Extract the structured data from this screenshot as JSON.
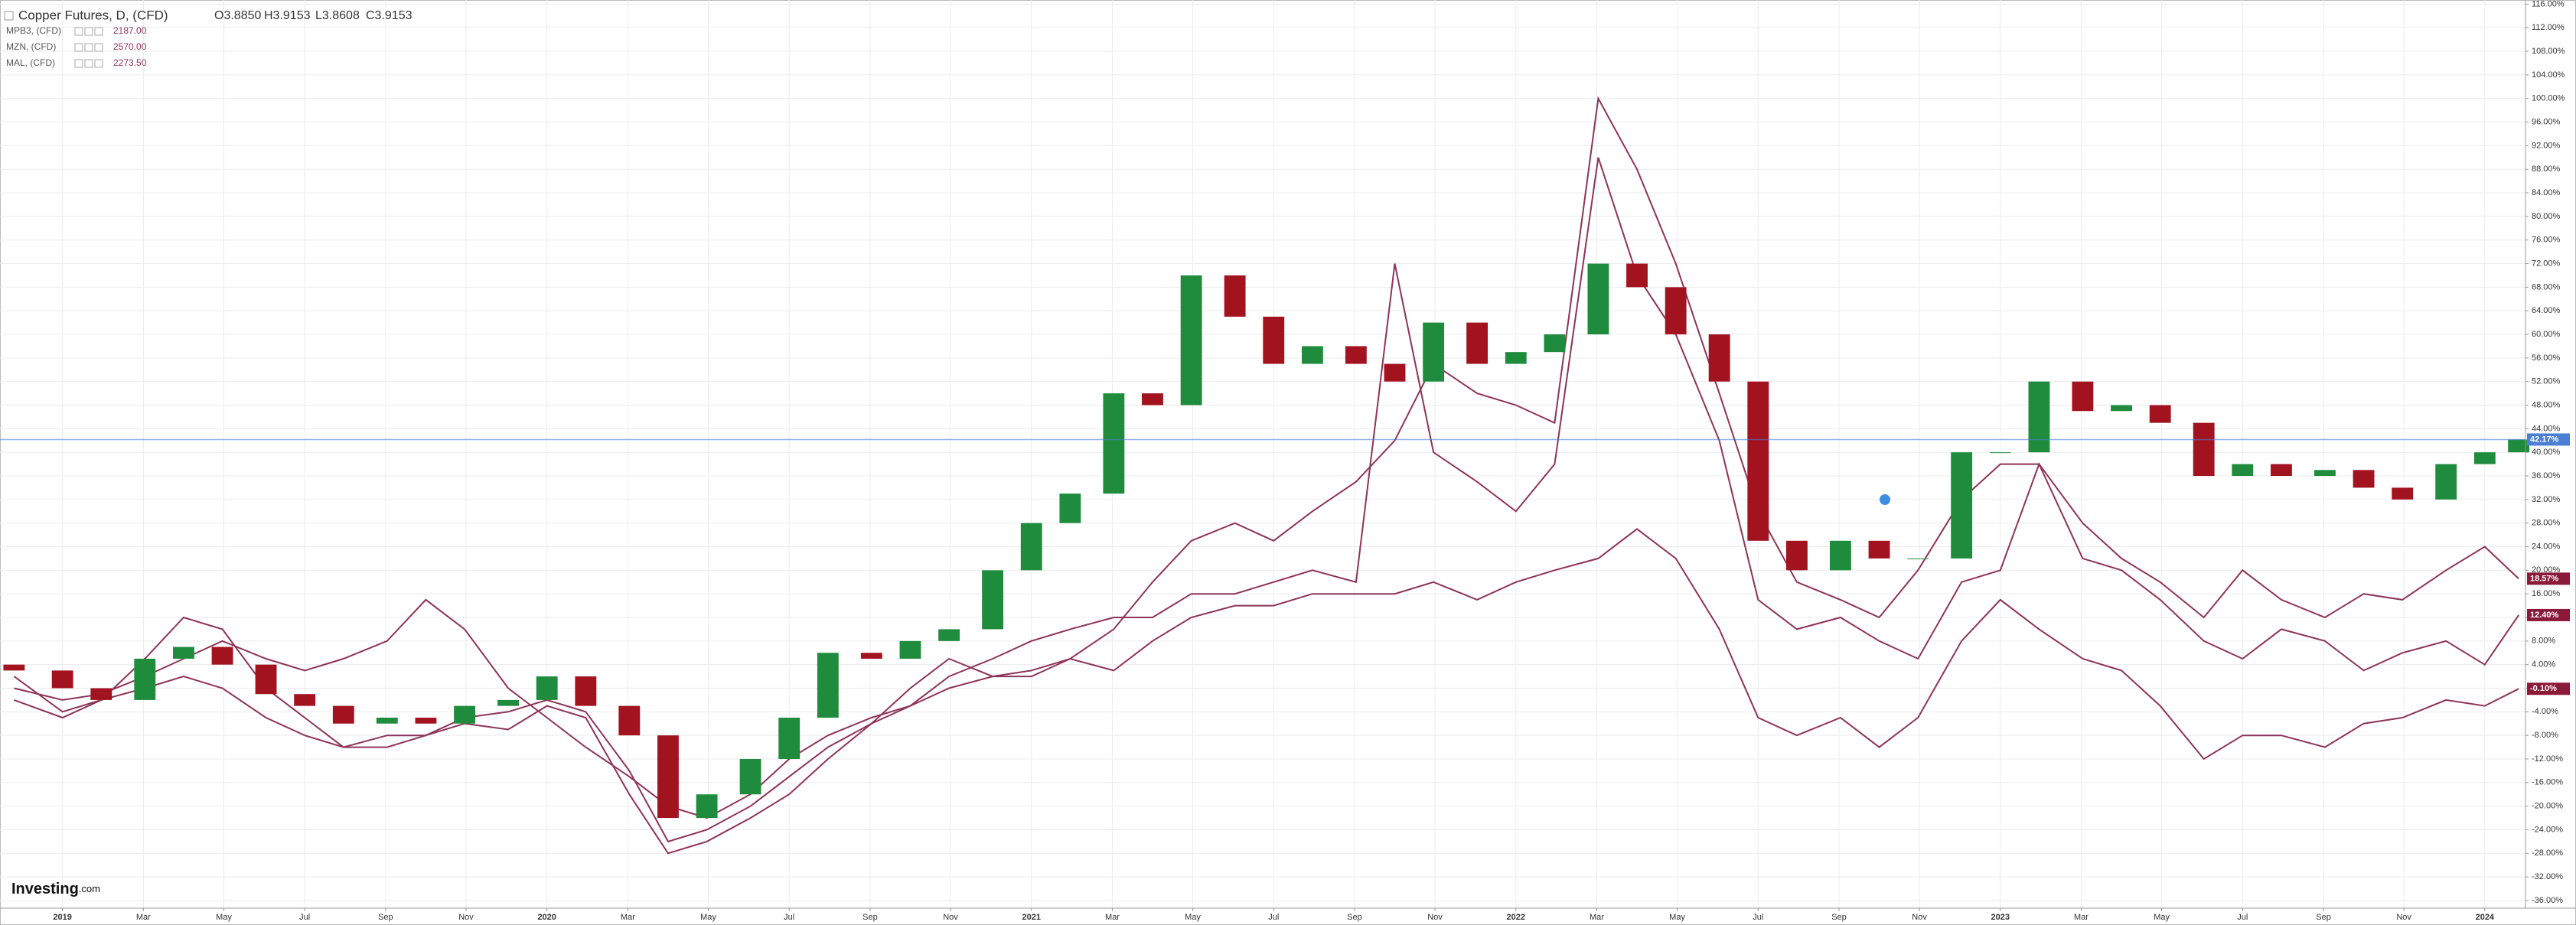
{
  "chart_data": {
    "type": "candlestick",
    "title": "Copper Futures, D, (CFD)",
    "ohlc": [
      "O3.8850",
      "H3.9153",
      "L3.8608",
      "C3.9153"
    ],
    "up_color": "#1e8c3c",
    "down_color": "#a3121f",
    "last_label": "42.17%",
    "last_color": "#4a7fd4",
    "grid": true,
    "x": [
      2018.9,
      2019,
      2019.08,
      2019.17,
      2019.25,
      2019.33,
      2019.42,
      2019.5,
      2019.58,
      2019.67,
      2019.75,
      2019.83,
      2019.92,
      2020,
      2020.08,
      2020.17,
      2020.25,
      2020.33,
      2020.42,
      2020.5,
      2020.58,
      2020.67,
      2020.75,
      2020.83,
      2020.92,
      2021,
      2021.08,
      2021.17,
      2021.25,
      2021.33,
      2021.42,
      2021.5,
      2021.58,
      2021.67,
      2021.75,
      2021.83,
      2021.92,
      2022,
      2022.08,
      2022.17,
      2022.25,
      2022.33,
      2022.42,
      2022.5,
      2022.58,
      2022.67,
      2022.75,
      2022.83,
      2022.92,
      2023,
      2023.08,
      2023.17,
      2023.25,
      2023.33,
      2023.42,
      2023.5,
      2023.58,
      2023.67,
      2023.75,
      2023.83,
      2023.92,
      2024,
      2024.07
    ],
    "open": [
      4,
      3,
      0,
      -2,
      5,
      7,
      4,
      -1,
      -3,
      -6,
      -5,
      -6,
      -3,
      -2,
      2,
      -3,
      -8,
      -22,
      -18,
      -12,
      -5,
      6,
      5,
      8,
      10,
      20,
      28,
      33,
      50,
      48,
      70,
      63,
      55,
      58,
      55,
      52,
      62,
      55,
      57,
      60,
      72,
      68,
      60,
      52,
      25,
      20,
      25,
      22,
      22,
      40,
      40,
      52,
      47,
      48,
      45,
      36,
      38,
      36,
      37,
      34,
      32,
      38,
      40
    ],
    "close": [
      3,
      0,
      -2,
      5,
      7,
      4,
      -1,
      -3,
      -6,
      -5,
      -6,
      -3,
      -2,
      2,
      -3,
      -8,
      -22,
      -18,
      -12,
      -5,
      6,
      5,
      8,
      10,
      20,
      28,
      33,
      50,
      48,
      70,
      63,
      55,
      58,
      55,
      52,
      62,
      55,
      57,
      60,
      72,
      68,
      60,
      52,
      25,
      20,
      25,
      22,
      22,
      40,
      40,
      52,
      47,
      48,
      45,
      36,
      38,
      36,
      37,
      34,
      32,
      38,
      40,
      42.17
    ],
    "series": [
      {
        "name": "MPB3, (CFD)",
        "value_text": "2187.00",
        "color": "#8e3358",
        "last_label": "18.57%",
        "values": [
          2,
          -4,
          -2,
          0,
          2,
          0,
          -5,
          -8,
          -10,
          -8,
          -8,
          -5,
          -4,
          -2,
          -4,
          -14,
          -26,
          -24,
          -20,
          -15,
          -10,
          -6,
          0,
          5,
          2,
          3,
          5,
          10,
          18,
          25,
          28,
          25,
          30,
          35,
          42,
          55,
          50,
          48,
          45,
          100,
          88,
          72,
          50,
          30,
          18,
          15,
          12,
          20,
          32,
          38,
          38,
          28,
          22,
          18,
          12,
          20,
          15,
          12,
          16,
          15,
          20,
          24,
          18.57
        ]
      },
      {
        "name": "MZN, (CFD)",
        "value_text": "2570.00",
        "color": "#8e3358",
        "last_label": "12.40%",
        "values": [
          -2,
          -5,
          -2,
          5,
          12,
          10,
          0,
          -5,
          -10,
          -10,
          -8,
          -6,
          -7,
          -3,
          -5,
          -18,
          -28,
          -26,
          -22,
          -18,
          -12,
          -6,
          -3,
          2,
          5,
          8,
          10,
          12,
          12,
          16,
          16,
          18,
          20,
          18,
          72,
          40,
          35,
          30,
          38,
          90,
          70,
          60,
          42,
          15,
          10,
          12,
          8,
          5,
          18,
          20,
          38,
          22,
          20,
          15,
          8,
          5,
          10,
          8,
          3,
          6,
          8,
          4,
          12.4
        ]
      },
      {
        "name": "MAL, (CFD)",
        "value_text": "2273.50",
        "color": "#8e3358",
        "last_label": "-0.10%",
        "values": [
          0,
          -2,
          -1,
          2,
          5,
          8,
          5,
          3,
          5,
          8,
          15,
          10,
          0,
          -5,
          -10,
          -15,
          -20,
          -22,
          -18,
          -12,
          -8,
          -5,
          -3,
          0,
          2,
          2,
          5,
          3,
          8,
          12,
          14,
          14,
          16,
          16,
          16,
          18,
          15,
          18,
          20,
          22,
          27,
          22,
          10,
          -5,
          -8,
          -5,
          -10,
          -5,
          8,
          15,
          10,
          5,
          3,
          -3,
          -12,
          -8,
          -8,
          -10,
          -6,
          -5,
          -2,
          -3,
          -0.1
        ]
      }
    ],
    "xlim": [
      2018.871,
      2024.084
    ],
    "xticks": [
      2019,
      {
        "value": 2019.167,
        "label": "Mar"
      },
      {
        "value": 2019.333,
        "label": "May"
      },
      {
        "value": 2019.5,
        "label": "Jul"
      },
      {
        "value": 2019.667,
        "label": "Sep"
      },
      {
        "value": 2019.833,
        "label": "Nov"
      },
      2020,
      {
        "value": 2020.167,
        "label": "Mar"
      },
      {
        "value": 2020.333,
        "label": "May"
      },
      {
        "value": 2020.5,
        "label": "Jul"
      },
      {
        "value": 2020.667,
        "label": "Sep"
      },
      {
        "value": 2020.833,
        "label": "Nov"
      },
      2021,
      {
        "value": 2021.167,
        "label": "Mar"
      },
      {
        "value": 2021.333,
        "label": "May"
      },
      {
        "value": 2021.5,
        "label": "Jul"
      },
      {
        "value": 2021.667,
        "label": "Sep"
      },
      {
        "value": 2021.833,
        "label": "Nov"
      },
      2022,
      {
        "value": 2022.167,
        "label": "Mar"
      },
      {
        "value": 2022.333,
        "label": "May"
      },
      {
        "value": 2022.5,
        "label": "Jul"
      },
      {
        "value": 2022.667,
        "label": "Sep"
      },
      {
        "value": 2022.833,
        "label": "Nov"
      },
      2023,
      {
        "value": 2023.167,
        "label": "Mar"
      },
      {
        "value": 2023.333,
        "label": "May"
      },
      {
        "value": 2023.5,
        "label": "Jul"
      },
      {
        "value": 2023.667,
        "label": "Sep"
      },
      {
        "value": 2023.833,
        "label": "Nov"
      },
      2024
    ],
    "ylim": [
      -37.3,
      116.7
    ],
    "yticks": [
      {
        "value": 116,
        "label": "116.00%"
      },
      {
        "value": 112,
        "label": "112.00%"
      },
      {
        "value": 108,
        "label": "108.00%"
      },
      {
        "value": 104,
        "label": "104.00%"
      },
      {
        "value": 100,
        "label": "100.00%"
      },
      {
        "value": 96,
        "label": "96.00%"
      },
      {
        "value": 92,
        "label": "92.00%"
      },
      {
        "value": 88,
        "label": "88.00%"
      },
      {
        "value": 84,
        "label": "84.00%"
      },
      {
        "value": 80,
        "label": "80.00%"
      },
      {
        "value": 76,
        "label": "76.00%"
      },
      {
        "value": 72,
        "label": "72.00%"
      },
      {
        "value": 68,
        "label": "68.00%"
      },
      {
        "value": 64,
        "label": "64.00%"
      },
      {
        "value": 60,
        "label": "60.00%"
      },
      {
        "value": 56,
        "label": "56.00%"
      },
      {
        "value": 52,
        "label": "52.00%"
      },
      {
        "value": 48,
        "label": "48.00%"
      },
      {
        "value": 44,
        "label": "44.00%"
      },
      {
        "value": 40,
        "label": "40.00%"
      },
      {
        "value": 36,
        "label": "36.00%"
      },
      {
        "value": 32,
        "label": "32.00%"
      },
      {
        "value": 28,
        "label": "28.00%"
      },
      {
        "value": 24,
        "label": "24.00%"
      },
      {
        "value": 20,
        "label": "20.00%"
      },
      {
        "value": 16,
        "label": "16.00%"
      },
      {
        "value": 12,
        "label": "12.00%"
      },
      {
        "value": 8,
        "label": "8.00%"
      },
      {
        "value": 4,
        "label": "4.00%"
      },
      {
        "value": 0,
        "label": "0.00%"
      },
      {
        "value": -4,
        "label": "-4.00%"
      },
      {
        "value": -8,
        "label": "-8.00%"
      },
      {
        "value": -12,
        "label": "-12.00%"
      },
      {
        "value": -16,
        "label": "-16.00%"
      },
      {
        "value": -20,
        "label": "-20.00%"
      },
      {
        "value": -24,
        "label": "-24.00%"
      },
      {
        "value": -28,
        "label": "-28.00%"
      },
      {
        "value": -32,
        "label": "-32.00%"
      },
      {
        "value": -36,
        "label": "-36.00%"
      }
    ],
    "logo": "Investing",
    "logo_suffix": ".com"
  }
}
